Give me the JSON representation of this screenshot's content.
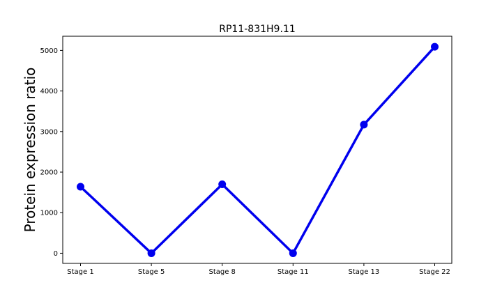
{
  "chart_data": {
    "type": "line",
    "title": "RP11-831H9.11",
    "xlabel": "",
    "ylabel": "Protein expression ratio",
    "categories": [
      "Stage 1",
      "Stage 5",
      "Stage 8",
      "Stage 11",
      "Stage 13",
      "Stage 22"
    ],
    "series": [
      {
        "values": [
          1640,
          0,
          1700,
          0,
          3170,
          5090
        ]
      }
    ],
    "ylim": [
      -250,
      5350
    ],
    "yticks": [
      0,
      1000,
      2000,
      3000,
      4000,
      5000
    ],
    "grid": false,
    "colors": {
      "line": "#0000ee",
      "marker": "#0000ee"
    }
  }
}
